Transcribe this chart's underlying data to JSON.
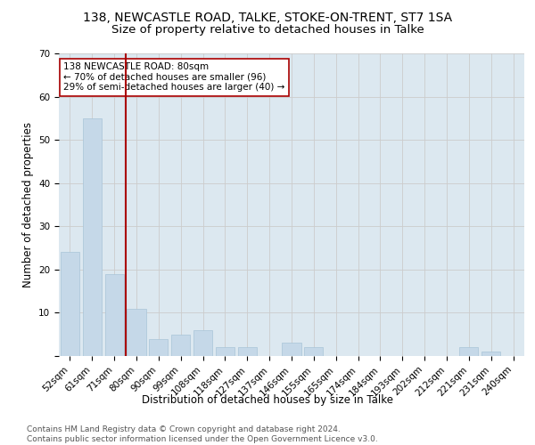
{
  "title_main": "138, NEWCASTLE ROAD, TALKE, STOKE-ON-TRENT, ST7 1SA",
  "title_sub": "Size of property relative to detached houses in Talke",
  "xlabel": "Distribution of detached houses by size in Talke",
  "ylabel": "Number of detached properties",
  "categories": [
    "52sqm",
    "61sqm",
    "71sqm",
    "80sqm",
    "90sqm",
    "99sqm",
    "108sqm",
    "118sqm",
    "127sqm",
    "137sqm",
    "146sqm",
    "155sqm",
    "165sqm",
    "174sqm",
    "184sqm",
    "193sqm",
    "202sqm",
    "212sqm",
    "221sqm",
    "231sqm",
    "240sqm"
  ],
  "values": [
    24,
    55,
    19,
    11,
    4,
    5,
    6,
    2,
    2,
    0,
    3,
    2,
    0,
    0,
    0,
    0,
    0,
    0,
    2,
    1,
    0
  ],
  "bar_color": "#c5d8e8",
  "bar_edgecolor": "#a8c4d8",
  "vline_index": 3,
  "vline_color": "#aa0000",
  "annotation_text": "138 NEWCASTLE ROAD: 80sqm\n← 70% of detached houses are smaller (96)\n29% of semi-detached houses are larger (40) →",
  "annotation_box_facecolor": "white",
  "annotation_box_edgecolor": "#aa0000",
  "ylim": [
    0,
    70
  ],
  "yticks": [
    0,
    10,
    20,
    30,
    40,
    50,
    60,
    70
  ],
  "grid_color": "#cccccc",
  "bg_color": "#dce8f0",
  "footer_text": "Contains HM Land Registry data © Crown copyright and database right 2024.\nContains public sector information licensed under the Open Government Licence v3.0.",
  "title_main_fontsize": 10,
  "title_sub_fontsize": 9.5,
  "tick_fontsize": 7.5,
  "ylabel_fontsize": 8.5,
  "xlabel_fontsize": 8.5,
  "footer_fontsize": 6.5
}
